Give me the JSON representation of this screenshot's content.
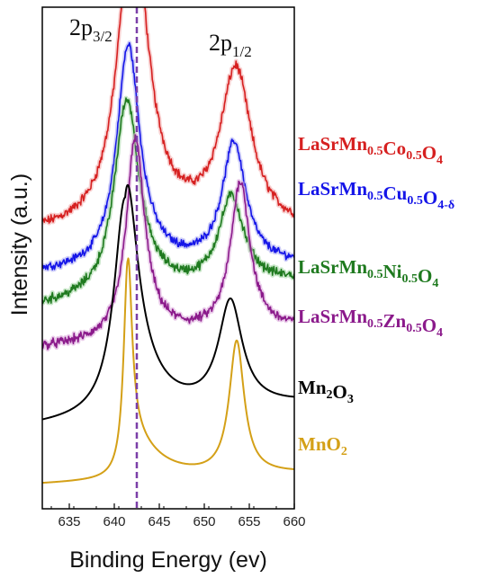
{
  "chart_data": {
    "type": "line",
    "xlabel": "Binding Energy (ev)",
    "ylabel": "Intensity (a.u.)",
    "xlim": [
      632,
      660
    ],
    "xticks": [
      "635",
      "640",
      "645",
      "650",
      "655",
      "660"
    ],
    "grid": false,
    "legend": "inline-right",
    "reference_line": {
      "x": 642.5,
      "color": "#7B3FA8",
      "style": "dashed"
    },
    "annotations": [
      {
        "base": "2p",
        "sub": "3/2",
        "x": 642
      },
      {
        "base": "2p",
        "sub": "1/2",
        "x": 653.5
      }
    ],
    "series": [
      {
        "name_parts": [
          [
            "LaSrMn",
            ""
          ],
          [
            "0.5",
            "sub"
          ],
          [
            "Co",
            ""
          ],
          [
            "0.5",
            "sub"
          ],
          [
            "O",
            ""
          ],
          [
            "4",
            "sub"
          ]
        ],
        "color": "#D62020",
        "glow": "#F2A8A8",
        "noise": 0.026,
        "baseline": 0.33,
        "linear": 0.01,
        "peaks": [
          [
            642.0,
            1.13,
            1.9
          ],
          [
            653.5,
            0.57,
            2.1
          ]
        ],
        "tail": 0.11
      },
      {
        "name_parts": [
          [
            "LaSrMn",
            ""
          ],
          [
            "0.5",
            "sub"
          ],
          [
            "Cu",
            ""
          ],
          [
            "0.5",
            "sub"
          ],
          [
            "O",
            ""
          ],
          [
            "4-δ",
            "sub"
          ]
        ],
        "color": "#1515E8",
        "glow": "#A8A8F2",
        "noise": 0.022,
        "baseline": 0.19,
        "linear": 0.03,
        "peaks": [
          [
            641.5,
            0.8,
            1.5
          ],
          [
            653.3,
            0.44,
            1.6
          ]
        ],
        "tail": 0.08
      },
      {
        "name_parts": [
          [
            "LaSrMn",
            ""
          ],
          [
            "0.5",
            "sub"
          ],
          [
            "Ni",
            ""
          ],
          [
            "0.5",
            "sub"
          ],
          [
            "O",
            ""
          ],
          [
            "4",
            "sub"
          ]
        ],
        "color": "#1F7A1F",
        "glow": "#9DD39D",
        "noise": 0.026,
        "baseline": 0.07,
        "linear": 0.09,
        "peaks": [
          [
            641.3,
            0.7,
            1.6
          ],
          [
            653.0,
            0.32,
            1.7
          ]
        ],
        "tail": 0.1
      },
      {
        "name_parts": [
          [
            "LaSrMn",
            ""
          ],
          [
            "0.5",
            "sub"
          ],
          [
            "Zn",
            ""
          ],
          [
            "0.5",
            "sub"
          ],
          [
            "O",
            ""
          ],
          [
            "4",
            "sub"
          ]
        ],
        "color": "#8B1A8B",
        "glow": "#D9A3D9",
        "noise": 0.026,
        "baseline": -0.08,
        "linear": 0.07,
        "peaks": [
          [
            642.3,
            0.72,
            1.2
          ],
          [
            654.0,
            0.54,
            1.3
          ]
        ],
        "tail": 0.07
      },
      {
        "name_parts": [
          [
            "Mn",
            ""
          ],
          [
            "2",
            "sub"
          ],
          [
            "O",
            ""
          ],
          [
            "3",
            "sub"
          ]
        ],
        "color": "#000000",
        "glow": "",
        "noise": 0.0,
        "baseline": -0.36,
        "linear": 0.08,
        "peaks": [
          [
            641.2,
            0.79,
            1.5
          ],
          [
            652.9,
            0.38,
            1.6
          ]
        ],
        "tail": 0.26
      },
      {
        "name_parts": [
          [
            "MnO",
            ""
          ],
          [
            "2",
            "sub"
          ]
        ],
        "color": "#D4A017",
        "glow": "",
        "noise": 0.0,
        "baseline": -0.57,
        "linear": 0.04,
        "peaks": [
          [
            641.5,
            0.79,
            0.55
          ],
          [
            653.6,
            0.48,
            1.0
          ]
        ],
        "tail": 0.22
      }
    ]
  }
}
